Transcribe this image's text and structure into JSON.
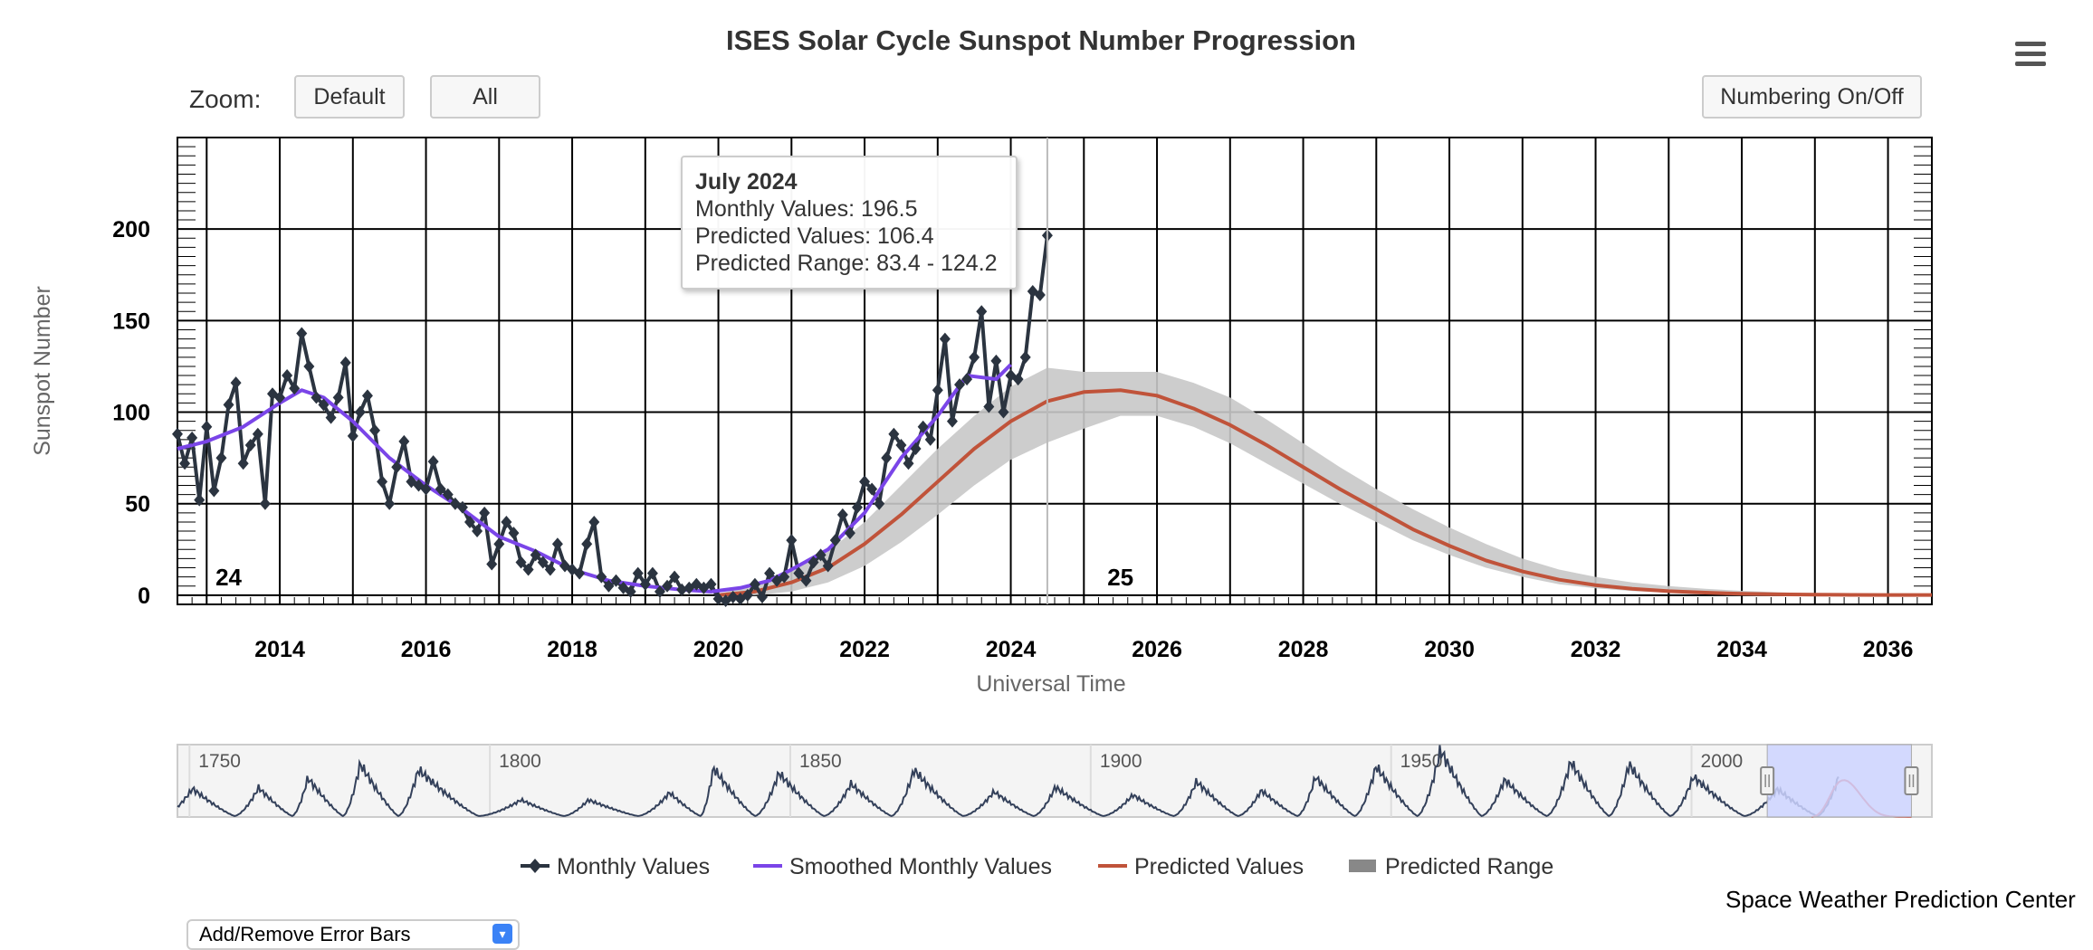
{
  "title": "ISES Solar Cycle Sunspot Number Progression",
  "toolbar": {
    "zoom_label": "Zoom:",
    "default_label": "Default",
    "all_label": "All",
    "numbering_label": "Numbering On/Off"
  },
  "menu_icon": "hamburger-menu-icon",
  "tooltip": {
    "title": "July 2024",
    "monthly": "Monthly Values: 196.5",
    "predicted": "Predicted Values: 106.4",
    "range": "Predicted Range: 83.4 - 124.2"
  },
  "footer": {
    "credits": "Space Weather Prediction Center",
    "error_bars_label": "Add/Remove Error Bars"
  },
  "chart_data": {
    "type": "line",
    "title": "ISES Solar Cycle Sunspot Number Progression",
    "xlabel": "Universal Time",
    "ylabel": "Sunspot Number",
    "xlim": [
      2012.6,
      2036.6
    ],
    "ylim": [
      -5,
      250
    ],
    "x_ticks": [
      2014,
      2016,
      2018,
      2020,
      2022,
      2024,
      2026,
      2028,
      2030,
      2032,
      2034,
      2036
    ],
    "y_ticks": [
      0,
      50,
      100,
      150,
      200
    ],
    "grid": true,
    "cycle_labels": [
      {
        "x": 2013.3,
        "label": "24"
      },
      {
        "x": 2025.5,
        "label": "25"
      }
    ],
    "cursor_x": 2024.5,
    "legend": {
      "position": "bottom",
      "entries": [
        "Monthly Values",
        "Smoothed Monthly Values",
        "Predicted Values",
        "Predicted Range"
      ]
    },
    "colors": {
      "monthly": "#2b3440",
      "smoothed": "#7a45e8",
      "predicted": "#c0533a",
      "range": "#c8c8c8",
      "navigator_band": "#ccd3ff"
    },
    "series": [
      {
        "name": "Monthly Values",
        "x": [
          2012.6,
          2012.7,
          2012.8,
          2012.9,
          2013.0,
          2013.1,
          2013.2,
          2013.3,
          2013.4,
          2013.5,
          2013.6,
          2013.7,
          2013.8,
          2013.9,
          2014.0,
          2014.1,
          2014.2,
          2014.3,
          2014.4,
          2014.5,
          2014.6,
          2014.7,
          2014.8,
          2014.9,
          2015.0,
          2015.1,
          2015.2,
          2015.3,
          2015.4,
          2015.5,
          2015.6,
          2015.7,
          2015.8,
          2015.9,
          2016.0,
          2016.1,
          2016.2,
          2016.3,
          2016.4,
          2016.5,
          2016.6,
          2016.7,
          2016.8,
          2016.9,
          2017.0,
          2017.1,
          2017.2,
          2017.3,
          2017.4,
          2017.5,
          2017.6,
          2017.7,
          2017.8,
          2017.9,
          2018.0,
          2018.1,
          2018.2,
          2018.3,
          2018.4,
          2018.5,
          2018.6,
          2018.7,
          2018.8,
          2018.9,
          2019.0,
          2019.1,
          2019.2,
          2019.3,
          2019.4,
          2019.5,
          2019.6,
          2019.7,
          2019.8,
          2019.9,
          2020.0,
          2020.1,
          2020.2,
          2020.3,
          2020.4,
          2020.5,
          2020.6,
          2020.7,
          2020.8,
          2020.9,
          2021.0,
          2021.1,
          2021.2,
          2021.3,
          2021.4,
          2021.5,
          2021.6,
          2021.7,
          2021.8,
          2021.9,
          2022.0,
          2022.1,
          2022.2,
          2022.3,
          2022.4,
          2022.5,
          2022.6,
          2022.7,
          2022.8,
          2022.9,
          2023.0,
          2023.1,
          2023.2,
          2023.3,
          2023.4,
          2023.5,
          2023.6,
          2023.7,
          2023.8,
          2023.9,
          2024.0,
          2024.1,
          2024.2,
          2024.3,
          2024.4,
          2024.5
        ],
        "values": [
          88,
          72,
          86,
          52,
          92,
          57,
          75,
          104,
          116,
          72,
          82,
          88,
          50,
          110,
          108,
          120,
          113,
          143,
          125,
          108,
          104,
          97,
          108,
          127,
          87,
          100,
          109,
          90,
          62,
          50,
          70,
          84,
          62,
          60,
          58,
          73,
          58,
          55,
          50,
          48,
          40,
          35,
          45,
          17,
          28,
          40,
          34,
          18,
          14,
          22,
          18,
          14,
          28,
          16,
          14,
          12,
          28,
          40,
          10,
          5,
          8,
          4,
          2,
          12,
          6,
          12,
          2,
          5,
          10,
          3,
          4,
          6,
          4,
          6,
          -2,
          -3,
          -1,
          -2,
          0,
          6,
          -1,
          12,
          8,
          10,
          30,
          12,
          8,
          18,
          22,
          16,
          30,
          44,
          34,
          48,
          62,
          58,
          50,
          75,
          88,
          82,
          72,
          80,
          92,
          85,
          112,
          140,
          95,
          115,
          118,
          130,
          155,
          103,
          128,
          100,
          120,
          118,
          130,
          166,
          164,
          196.5
        ]
      },
      {
        "name": "Smoothed Monthly Values",
        "x": [
          2012.6,
          2013.0,
          2013.5,
          2014.0,
          2014.3,
          2014.6,
          2015.0,
          2015.5,
          2016.0,
          2016.5,
          2017.0,
          2017.5,
          2018.0,
          2018.5,
          2019.0,
          2019.5,
          2019.9,
          2020.3,
          2020.7,
          2021.0,
          2021.5,
          2022.0,
          2022.5,
          2023.0,
          2023.4,
          2023.8,
          2024.0
        ],
        "values": [
          80,
          84,
          92,
          105,
          112,
          108,
          95,
          75,
          60,
          47,
          32,
          24,
          14,
          8,
          5,
          3,
          2,
          4,
          8,
          14,
          25,
          45,
          75,
          98,
          120,
          118,
          126
        ]
      },
      {
        "name": "Predicted Values",
        "x": [
          2020.0,
          2020.5,
          2021.0,
          2021.5,
          2022.0,
          2022.5,
          2023.0,
          2023.5,
          2024.0,
          2024.5,
          2025.0,
          2025.5,
          2026.0,
          2026.5,
          2027.0,
          2027.5,
          2028.0,
          2028.5,
          2029.0,
          2029.5,
          2030.0,
          2030.5,
          2031.0,
          2031.5,
          2032.0,
          2032.5,
          2033.0,
          2033.5,
          2034.0,
          2034.5,
          2035.0,
          2035.5,
          2036.0,
          2036.6
        ],
        "values": [
          0,
          2,
          7,
          15,
          28,
          44,
          62,
          80,
          95,
          106,
          111,
          112,
          109,
          102,
          93,
          82,
          70,
          58,
          47,
          36,
          27,
          19,
          13,
          8.5,
          5.5,
          3.5,
          2.2,
          1.4,
          0.8,
          0.5,
          0.3,
          0.2,
          0.1,
          0.1
        ]
      },
      {
        "name": "Predicted Range",
        "x": [
          2020.0,
          2020.5,
          2021.0,
          2021.5,
          2022.0,
          2022.5,
          2023.0,
          2023.5,
          2024.0,
          2024.5,
          2025.0,
          2025.5,
          2026.0,
          2026.5,
          2027.0,
          2027.5,
          2028.0,
          2028.5,
          2029.0,
          2029.5,
          2030.0,
          2030.5,
          2031.0,
          2031.5,
          2032.0,
          2032.5,
          2033.0,
          2033.5,
          2034.0,
          2034.5,
          2035.0,
          2035.5,
          2036.0,
          2036.6
        ],
        "low": [
          0,
          0,
          2,
          7,
          16,
          29,
          44,
          60,
          74,
          83.4,
          91,
          98,
          98,
          92,
          83,
          72,
          61,
          50,
          40,
          30,
          22,
          15,
          10,
          6,
          3.8,
          2.3,
          1.4,
          0.8,
          0.4,
          0.2,
          0.1,
          0,
          0,
          0
        ],
        "high": [
          1,
          5,
          13,
          24,
          40,
          60,
          80,
          98,
          114,
          124.2,
          122,
          122,
          122,
          116,
          108,
          96,
          83,
          70,
          58,
          47,
          37,
          28,
          20,
          14,
          10,
          7,
          5,
          3.5,
          2.4,
          1.6,
          1.0,
          0.7,
          0.5,
          0.3
        ]
      }
    ],
    "navigator": {
      "x_ticks": [
        1750,
        1800,
        1850,
        1900,
        1950,
        2000
      ],
      "xlim": [
        1748,
        2040
      ],
      "selection": [
        2012.6,
        2036.6
      ],
      "cycle_maxima": [
        [
          1750.5,
          83
        ],
        [
          1761.5,
          86
        ],
        [
          1769.7,
          116
        ],
        [
          1778.4,
          159
        ],
        [
          1788.1,
          141
        ],
        [
          1805.2,
          49
        ],
        [
          1816.4,
          49
        ],
        [
          1829.9,
          71
        ],
        [
          1837.2,
          146
        ],
        [
          1848.1,
          131
        ],
        [
          1860.1,
          98
        ],
        [
          1870.6,
          140
        ],
        [
          1883.9,
          74
        ],
        [
          1894.1,
          88
        ],
        [
          1907.0,
          64
        ],
        [
          1917.6,
          105
        ],
        [
          1928.4,
          78
        ],
        [
          1937.4,
          119
        ],
        [
          1947.5,
          151
        ],
        [
          1958.2,
          201
        ],
        [
          1968.9,
          111
        ],
        [
          1979.9,
          165
        ],
        [
          1989.6,
          158
        ],
        [
          2000.3,
          120
        ],
        [
          2014.3,
          82
        ],
        [
          2024.6,
          125
        ]
      ]
    }
  }
}
